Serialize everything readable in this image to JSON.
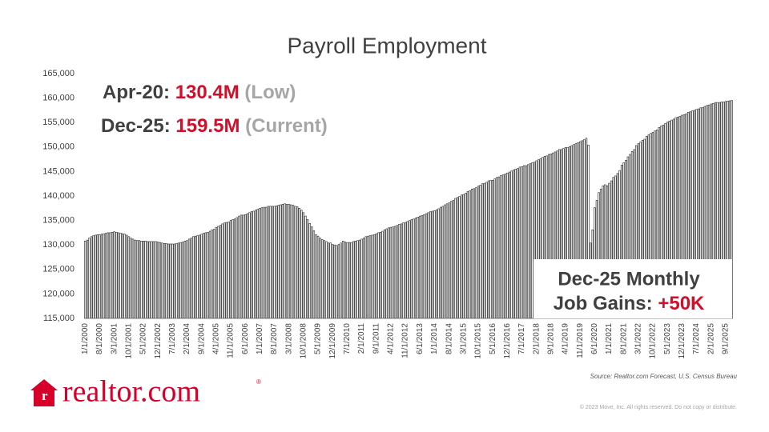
{
  "chart_data": {
    "type": "bar",
    "title": "Payroll Employment",
    "categories": [
      "1/1/2000",
      null,
      null,
      null,
      null,
      null,
      null,
      "8/1/2000",
      null,
      null,
      null,
      null,
      null,
      null,
      "3/1/2001",
      null,
      null,
      null,
      null,
      null,
      null,
      "10/1/2001",
      null,
      null,
      null,
      null,
      null,
      null,
      "5/1/2002",
      null,
      null,
      null,
      null,
      null,
      null,
      "12/1/2002",
      null,
      null,
      null,
      null,
      null,
      null,
      "7/1/2003",
      null,
      null,
      null,
      null,
      null,
      null,
      "2/1/2004",
      null,
      null,
      null,
      null,
      null,
      null,
      "9/1/2004",
      null,
      null,
      null,
      null,
      null,
      null,
      "4/1/2005",
      null,
      null,
      null,
      null,
      null,
      null,
      "11/1/2005",
      null,
      null,
      null,
      null,
      null,
      null,
      "6/1/2006",
      null,
      null,
      null,
      null,
      null,
      null,
      "1/1/2007",
      null,
      null,
      null,
      null,
      null,
      null,
      "8/1/2007",
      null,
      null,
      null,
      null,
      null,
      null,
      "3/1/2008",
      null,
      null,
      null,
      null,
      null,
      null,
      "10/1/2008",
      null,
      null,
      null,
      null,
      null,
      null,
      "5/1/2009",
      null,
      null,
      null,
      null,
      null,
      null,
      "12/1/2009",
      null,
      null,
      null,
      null,
      null,
      null,
      "7/1/2010",
      null,
      null,
      null,
      null,
      null,
      null,
      "2/1/2011",
      null,
      null,
      null,
      null,
      null,
      null,
      "9/1/2011",
      null,
      null,
      null,
      null,
      null,
      null,
      "4/1/2012",
      null,
      null,
      null,
      null,
      null,
      null,
      "11/1/2012",
      null,
      null,
      null,
      null,
      null,
      null,
      "6/1/2013",
      null,
      null,
      null,
      null,
      null,
      null,
      "1/1/2014",
      null,
      null,
      null,
      null,
      null,
      null,
      "8/1/2014",
      null,
      null,
      null,
      null,
      null,
      null,
      "3/1/2015",
      null,
      null,
      null,
      null,
      null,
      null,
      "10/1/2015",
      null,
      null,
      null,
      null,
      null,
      null,
      "5/1/2016",
      null,
      null,
      null,
      null,
      null,
      null,
      "12/1/2016",
      null,
      null,
      null,
      null,
      null,
      null,
      "7/1/2017",
      null,
      null,
      null,
      null,
      null,
      null,
      "2/1/2018",
      null,
      null,
      null,
      null,
      null,
      null,
      "9/1/2018",
      null,
      null,
      null,
      null,
      null,
      null,
      "4/1/2019",
      null,
      null,
      null,
      null,
      null,
      null,
      "11/1/2019",
      null,
      null,
      null,
      null,
      null,
      null,
      "6/1/2020",
      null,
      null,
      null,
      null,
      null,
      null,
      "1/1/2021",
      null,
      null,
      null,
      null,
      null,
      null,
      "8/1/2021",
      null,
      null,
      null,
      null,
      null,
      null,
      "3/1/2022",
      null,
      null,
      null,
      null,
      null,
      null,
      "10/1/2022",
      null,
      null,
      null,
      null,
      null,
      null,
      "5/1/2023",
      null,
      null,
      null,
      null,
      null,
      null,
      "12/1/2023",
      null,
      null,
      null,
      null,
      null,
      null,
      "7/1/2024",
      null,
      null,
      null,
      null,
      null,
      null,
      "2/1/2025",
      null,
      null,
      null,
      null,
      null,
      null,
      "9/1/2025",
      null,
      null,
      null
    ],
    "values": [
      130800,
      131000,
      131400,
      131700,
      131900,
      132000,
      132100,
      132100,
      132200,
      132300,
      132400,
      132500,
      132500,
      132600,
      132700,
      132600,
      132500,
      132400,
      132300,
      132200,
      132000,
      131700,
      131400,
      131200,
      131000,
      130900,
      130900,
      130800,
      130800,
      130800,
      130700,
      130700,
      130700,
      130700,
      130700,
      130600,
      130500,
      130400,
      130300,
      130300,
      130200,
      130200,
      130200,
      130200,
      130300,
      130400,
      130500,
      130600,
      130800,
      130900,
      131200,
      131400,
      131700,
      131800,
      131900,
      132000,
      132200,
      132400,
      132500,
      132600,
      132800,
      133100,
      133200,
      133600,
      133800,
      134000,
      134300,
      134500,
      134600,
      134700,
      135000,
      135200,
      135300,
      135600,
      135900,
      136100,
      136100,
      136200,
      136400,
      136600,
      136800,
      136900,
      137100,
      137300,
      137500,
      137600,
      137700,
      137700,
      137900,
      137900,
      137900,
      137900,
      138000,
      138100,
      138200,
      138300,
      138400,
      138300,
      138300,
      138200,
      138100,
      137900,
      137800,
      137500,
      137100,
      136600,
      135900,
      135200,
      134400,
      133700,
      132900,
      132100,
      131800,
      131400,
      131100,
      130900,
      130700,
      130400,
      130400,
      130100,
      130000,
      129900,
      130100,
      130400,
      130800,
      130600,
      130500,
      130500,
      130500,
      130700,
      130800,
      130900,
      131000,
      131200,
      131400,
      131700,
      131800,
      131900,
      132000,
      132100,
      132300,
      132500,
      132600,
      132800,
      133100,
      133300,
      133500,
      133600,
      133700,
      133800,
      134000,
      134200,
      134300,
      134500,
      134600,
      134800,
      135000,
      135200,
      135300,
      135500,
      135700,
      135900,
      136000,
      136200,
      136400,
      136600,
      136800,
      136900,
      137000,
      137200,
      137400,
      137700,
      137900,
      138200,
      138400,
      138600,
      138900,
      139100,
      139500,
      139700,
      139900,
      140200,
      140300,
      140600,
      140900,
      141100,
      141400,
      141500,
      141700,
      142000,
      142200,
      142500,
      142600,
      142800,
      143100,
      143200,
      143200,
      143500,
      143800,
      143900,
      144200,
      144300,
      144500,
      144700,
      144900,
      145100,
      145300,
      145500,
      145600,
      145900,
      146000,
      146200,
      146200,
      146400,
      146600,
      146800,
      146900,
      147200,
      147400,
      147600,
      147900,
      148100,
      148200,
      148500,
      148600,
      148800,
      149000,
      149200,
      149500,
      149500,
      149700,
      149900,
      149900,
      150100,
      150300,
      150500,
      150700,
      150900,
      151100,
      151300,
      151500,
      151800,
      150400,
      130400,
      133100,
      137600,
      139100,
      140700,
      141400,
      142100,
      142300,
      142100,
      142600,
      143100,
      143800,
      144100,
      144600,
      145200,
      146300,
      146800,
      147300,
      148000,
      148500,
      149100,
      149500,
      150300,
      150700,
      151000,
      151400,
      151600,
      152200,
      152500,
      152800,
      153000,
      153300,
      153500,
      154000,
      154300,
      154500,
      154800,
      155100,
      155300,
      155500,
      155700,
      156000,
      156100,
      156300,
      156500,
      156600,
      156800,
      157100,
      157200,
      157400,
      157500,
      157700,
      157800,
      158000,
      158100,
      158300,
      158500,
      158600,
      158800,
      158900,
      159100,
      159100,
      159100,
      159200,
      159200,
      159300,
      159400,
      159450,
      159500
    ],
    "color": "#ffffff",
    "edge_color": "#222222",
    "ylim": [
      115000,
      165000
    ],
    "yticks": [
      {
        "value": 115000,
        "label": "115,000"
      },
      {
        "value": 120000,
        "label": "120,000"
      },
      {
        "value": 125000,
        "label": "125,000"
      },
      {
        "value": 130000,
        "label": "130,000"
      },
      {
        "value": 135000,
        "label": "135,000"
      },
      {
        "value": 140000,
        "label": "140,000"
      },
      {
        "value": 145000,
        "label": "145,000"
      },
      {
        "value": 150000,
        "label": "150,000"
      },
      {
        "value": 155000,
        "label": "155,000"
      },
      {
        "value": 160000,
        "label": "160,000"
      },
      {
        "value": 165000,
        "label": "165,000"
      }
    ],
    "grid": false,
    "annotations": {
      "low": {
        "label": "Apr-20:",
        "value": "130.4M",
        "note": "(Low)"
      },
      "current": {
        "label": "Dec-25:",
        "value": "159.5M",
        "note": "(Current)"
      },
      "gains": {
        "line1": "Dec-25 Monthly",
        "label": "Job Gains:",
        "value": "+50K"
      }
    }
  },
  "footer": {
    "source": "Source: Realtor.com Forecast, U.S. Census Bureau",
    "copyright": "© 2023 Move, Inc. All rights reserved. Do not copy or distribute.",
    "logo": "realtor.com",
    "logo_mark": "®"
  }
}
